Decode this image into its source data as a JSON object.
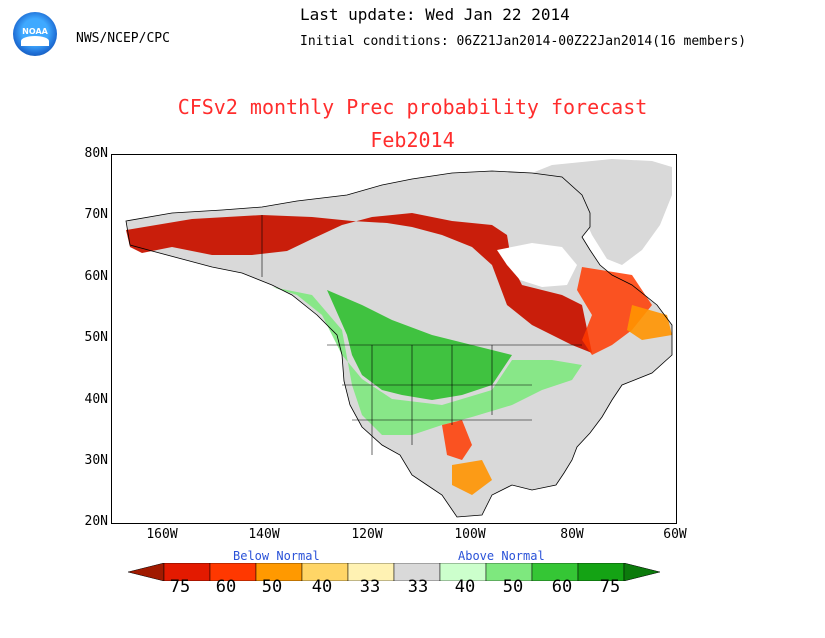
{
  "header": {
    "logo_text": "NOAA",
    "agency": "NWS/NCEP/CPC",
    "last_update": "Last update: Wed Jan 22 2014",
    "initial_conditions": "Initial conditions: 06Z21Jan2014-00Z22Jan2014(16 members)"
  },
  "title": {
    "line1": "CFSv2 monthly Prec probability forecast",
    "line2": "Feb2014"
  },
  "map": {
    "lat_labels": [
      "80N",
      "70N",
      "60N",
      "50N",
      "40N",
      "30N",
      "20N"
    ],
    "lon_labels": [
      "160W",
      "140W",
      "120W",
      "100W",
      "80W",
      "60W"
    ],
    "lat_range": [
      20,
      80
    ],
    "lon_range": [
      -170,
      -60
    ]
  },
  "legend": {
    "below_label": "Below Normal",
    "above_label": "Above Normal",
    "labels": [
      "75",
      "60",
      "50",
      "40",
      "33",
      "33",
      "40",
      "50",
      "60",
      "75"
    ],
    "colors": [
      "#a01a00",
      "#e31a00",
      "#ff3800",
      "#ff9900",
      "#ffd566",
      "#d9d9d9",
      "#ccffcc",
      "#7ee87e",
      "#35c635",
      "#14a314"
    ]
  },
  "colors": {
    "title": "#ff2d2d",
    "legend_text": "#2a52d8",
    "neutral": "#d9d9d9",
    "below_strong": "#c81400",
    "below_medium": "#ff3a00",
    "below_weak": "#ff9400",
    "above_weak": "#ccffcc",
    "above_medium": "#7ee87e",
    "above_strong": "#2fbf2f"
  }
}
